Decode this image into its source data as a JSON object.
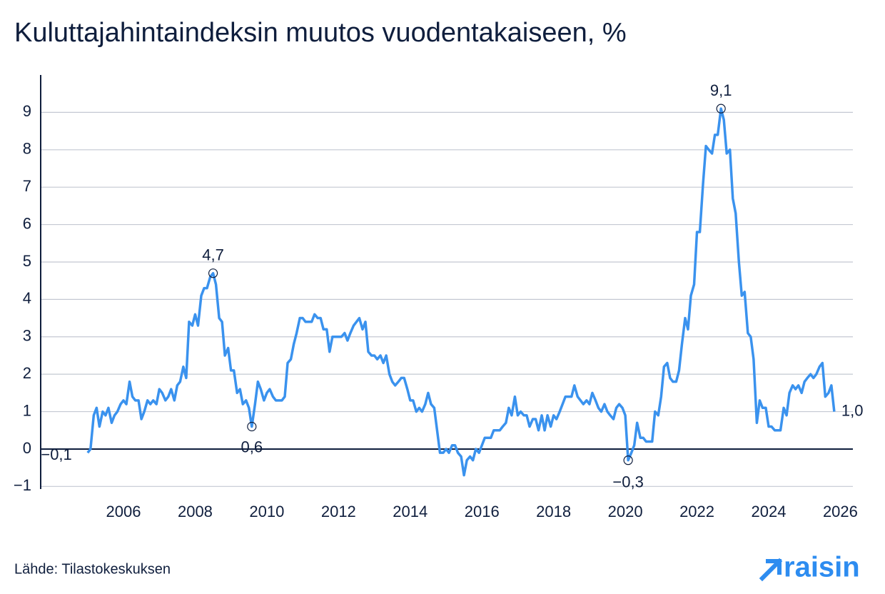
{
  "chart_data": {
    "type": "line",
    "title": "Kuluttajahintaindeksin muutos vuodentakaiseen, %",
    "source": "Lähde: Tilastokeskuksen",
    "brand": "raisin",
    "color": "#3a92ee",
    "x": [
      2005.0,
      2005.08,
      2005.17,
      2005.25,
      2005.33,
      2005.42,
      2005.5,
      2005.58,
      2005.67,
      2005.75,
      2005.83,
      2005.92,
      2006.0,
      2006.08,
      2006.17,
      2006.25,
      2006.33,
      2006.42,
      2006.5,
      2006.58,
      2006.67,
      2006.75,
      2006.83,
      2006.92,
      2007.0,
      2007.08,
      2007.17,
      2007.25,
      2007.33,
      2007.42,
      2007.5,
      2007.58,
      2007.67,
      2007.75,
      2007.83,
      2007.92,
      2008.0,
      2008.08,
      2008.17,
      2008.25,
      2008.33,
      2008.42,
      2008.5,
      2008.58,
      2008.67,
      2008.75,
      2008.83,
      2008.92,
      2009.0,
      2009.08,
      2009.17,
      2009.25,
      2009.33,
      2009.42,
      2009.5,
      2009.58,
      2009.67,
      2009.75,
      2009.83,
      2009.92,
      2010.0,
      2010.08,
      2010.17,
      2010.25,
      2010.33,
      2010.42,
      2010.5,
      2010.58,
      2010.67,
      2010.75,
      2010.83,
      2010.92,
      2011.0,
      2011.08,
      2011.17,
      2011.25,
      2011.33,
      2011.42,
      2011.5,
      2011.58,
      2011.67,
      2011.75,
      2011.83,
      2011.92,
      2012.0,
      2012.08,
      2012.17,
      2012.25,
      2012.33,
      2012.42,
      2012.5,
      2012.58,
      2012.67,
      2012.75,
      2012.83,
      2012.92,
      2013.0,
      2013.08,
      2013.17,
      2013.25,
      2013.33,
      2013.42,
      2013.5,
      2013.58,
      2013.67,
      2013.75,
      2013.83,
      2013.92,
      2014.0,
      2014.08,
      2014.17,
      2014.25,
      2014.33,
      2014.42,
      2014.5,
      2014.58,
      2014.67,
      2014.75,
      2014.83,
      2014.92,
      2015.0,
      2015.08,
      2015.17,
      2015.25,
      2015.33,
      2015.42,
      2015.5,
      2015.58,
      2015.67,
      2015.75,
      2015.83,
      2015.92,
      2016.0,
      2016.08,
      2016.17,
      2016.25,
      2016.33,
      2016.42,
      2016.5,
      2016.58,
      2016.67,
      2016.75,
      2016.83,
      2016.92,
      2017.0,
      2017.08,
      2017.17,
      2017.25,
      2017.33,
      2017.42,
      2017.5,
      2017.58,
      2017.67,
      2017.75,
      2017.83,
      2017.92,
      2018.0,
      2018.08,
      2018.17,
      2018.25,
      2018.33,
      2018.42,
      2018.5,
      2018.58,
      2018.67,
      2018.75,
      2018.83,
      2018.92,
      2019.0,
      2019.08,
      2019.17,
      2019.25,
      2019.33,
      2019.42,
      2019.5,
      2019.58,
      2019.67,
      2019.75,
      2019.83,
      2019.92,
      2020.0,
      2020.08,
      2020.17,
      2020.25,
      2020.33,
      2020.42,
      2020.5,
      2020.58,
      2020.67,
      2020.75,
      2020.83,
      2020.92,
      2021.0,
      2021.08,
      2021.17,
      2021.25,
      2021.33,
      2021.42,
      2021.5,
      2021.58,
      2021.67,
      2021.75,
      2021.83,
      2021.92,
      2022.0,
      2022.08,
      2022.17,
      2022.25,
      2022.33,
      2022.42,
      2022.5,
      2022.58,
      2022.67,
      2022.75,
      2022.83,
      2022.92,
      2023.0,
      2023.08,
      2023.17,
      2023.25,
      2023.33,
      2023.42,
      2023.5,
      2023.58,
      2023.67,
      2023.75,
      2023.83,
      2023.92,
      2024.0,
      2024.08,
      2024.17,
      2024.25,
      2024.33,
      2024.42,
      2024.5,
      2024.58,
      2024.67,
      2024.75,
      2024.83,
      2024.92,
      2025.0,
      2025.08,
      2025.17,
      2025.25,
      2025.33,
      2025.42,
      2025.5,
      2025.58,
      2025.67,
      2025.75,
      2025.83
    ],
    "values": [
      -0.1,
      0,
      0.9,
      1.1,
      0.6,
      1.0,
      0.9,
      1.1,
      0.7,
      0.9,
      1.0,
      1.2,
      1.3,
      1.2,
      1.8,
      1.4,
      1.3,
      1.3,
      0.8,
      1.0,
      1.3,
      1.2,
      1.3,
      1.2,
      1.6,
      1.5,
      1.3,
      1.4,
      1.6,
      1.3,
      1.7,
      1.8,
      2.2,
      1.9,
      3.4,
      3.3,
      3.6,
      3.3,
      4.1,
      4.3,
      4.3,
      4.6,
      4.7,
      4.4,
      3.5,
      3.4,
      2.5,
      2.7,
      2.1,
      2.1,
      1.5,
      1.6,
      1.2,
      1.3,
      1.1,
      0.6,
      1.2,
      1.8,
      1.6,
      1.3,
      1.5,
      1.6,
      1.4,
      1.3,
      1.3,
      1.3,
      1.4,
      2.3,
      2.4,
      2.8,
      3.1,
      3.5,
      3.5,
      3.4,
      3.4,
      3.4,
      3.6,
      3.5,
      3.5,
      3.2,
      3.2,
      2.6,
      3.0,
      3.0,
      3.0,
      3.0,
      3.1,
      2.9,
      3.1,
      3.3,
      3.4,
      3.5,
      3.2,
      3.4,
      2.6,
      2.5,
      2.5,
      2.4,
      2.5,
      2.3,
      2.5,
      2.0,
      1.8,
      1.7,
      1.8,
      1.9,
      1.9,
      1.6,
      1.3,
      1.3,
      1.0,
      1.1,
      1.0,
      1.2,
      1.5,
      1.2,
      1.1,
      0.5,
      -0.1,
      -0.1,
      0,
      -0.1,
      0.1,
      0.1,
      -0.1,
      -0.2,
      -0.7,
      -0.3,
      -0.2,
      -0.3,
      0,
      -0.1,
      0.1,
      0.3,
      0.3,
      0.3,
      0.5,
      0.5,
      0.5,
      0.6,
      0.7,
      1.1,
      0.9,
      1.4,
      0.9,
      1.0,
      0.9,
      0.9,
      0.6,
      0.8,
      0.8,
      0.5,
      0.9,
      0.5,
      0.9,
      0.6,
      0.9,
      0.8,
      1.0,
      1.2,
      1.4,
      1.4,
      1.4,
      1.7,
      1.4,
      1.3,
      1.2,
      1.3,
      1.2,
      1.5,
      1.3,
      1.1,
      1.0,
      1.2,
      1.0,
      0.9,
      0.8,
      1.1,
      1.2,
      1.1,
      0.9,
      -0.3,
      -0.1,
      0.1,
      0.7,
      0.3,
      0.3,
      0.2,
      0.2,
      0.2,
      1.0,
      0.9,
      1.4,
      2.2,
      2.3,
      1.9,
      1.8,
      1.8,
      2.1,
      2.8,
      3.5,
      3.2,
      4.1,
      4.4,
      5.8,
      5.8,
      7.1,
      8.1,
      8.0,
      7.9,
      8.4,
      8.4,
      9.1,
      8.8,
      7.9,
      8.0,
      6.7,
      6.3,
      5.0,
      4.1,
      4.2,
      3.1,
      3.0,
      2.4,
      0.7,
      1.3,
      1.1,
      1.1,
      0.6,
      0.6,
      0.5,
      0.5,
      0.5,
      1.1,
      0.9,
      1.5,
      1.7,
      1.6,
      1.7,
      1.5,
      1.8,
      1.9,
      2.0,
      1.9,
      2.0,
      2.2,
      2.3,
      1.4,
      1.5,
      1.7,
      1.0
    ],
    "annotations": [
      {
        "x": 2005.0,
        "y": -0.1,
        "label": "−0,1",
        "marker": false
      },
      {
        "x": 2008.5,
        "y": 4.7,
        "label": "4,7",
        "marker": true
      },
      {
        "x": 2009.58,
        "y": 0.6,
        "label": "0,6",
        "marker": true
      },
      {
        "x": 2020.08,
        "y": -0.3,
        "label": "−0,3",
        "marker": true
      },
      {
        "x": 2022.67,
        "y": 9.1,
        "label": "9,1",
        "marker": true
      },
      {
        "x": 2025.83,
        "y": 1.0,
        "label": "1,0",
        "marker": false
      }
    ],
    "xlim": [
      2003.69,
      2026.35
    ],
    "ylim": [
      -1.07,
      10
    ],
    "xticks": [
      2006,
      2008,
      2010,
      2012,
      2014,
      2016,
      2018,
      2020,
      2022,
      2024,
      2026
    ],
    "yticks": [
      {
        "value": -1,
        "label": "−1"
      },
      0,
      1,
      2,
      3,
      4,
      5,
      6,
      7,
      8,
      9
    ],
    "grid": true
  }
}
